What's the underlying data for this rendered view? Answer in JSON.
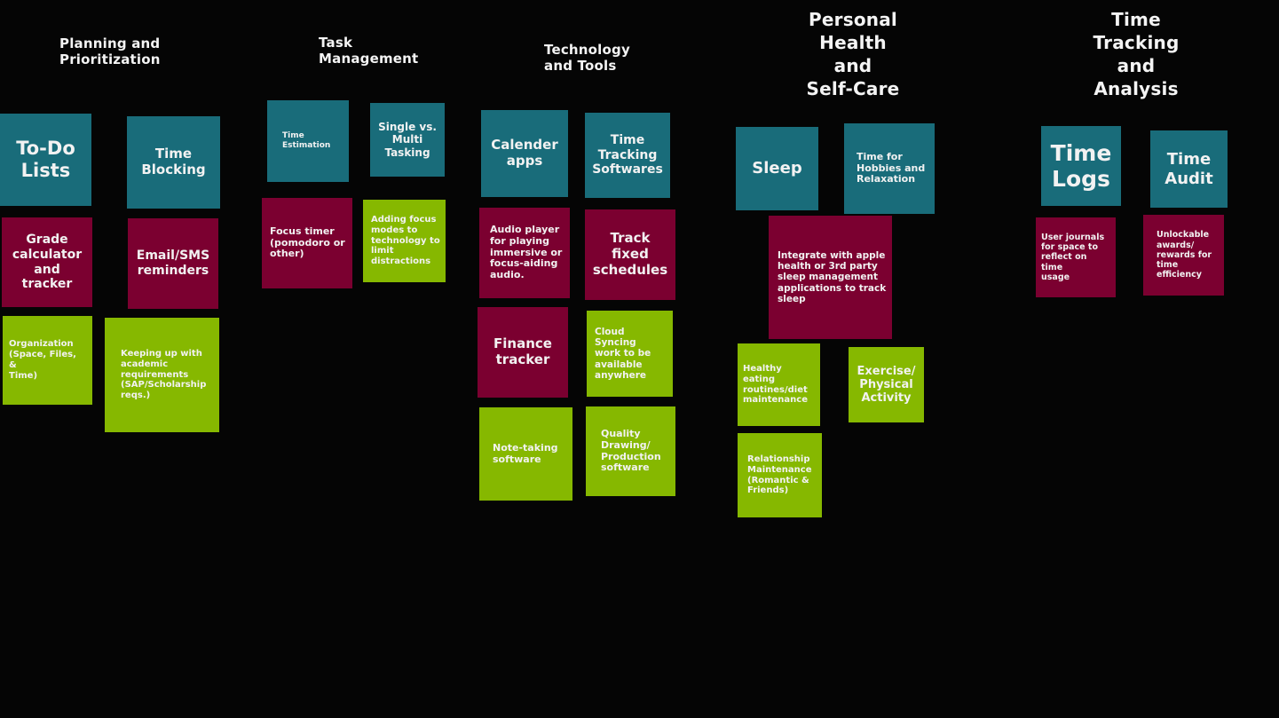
{
  "colors": {
    "background": "#050505",
    "teal": "#196c7a",
    "maroon": "#7b0030",
    "lime": "#86b800",
    "text": "#f2f2f2"
  },
  "headings": {
    "planning": "Planning and\nPrioritization",
    "task": "Task\nManagement",
    "tech": "Technology\nand Tools",
    "health": "Personal\nHealth\nand\nSelf-Care",
    "tracking": "Time\nTracking\nand\nAnalysis"
  },
  "notes": {
    "todo": "To-Do\nLists",
    "time_blocking": "Time\nBlocking",
    "grade_calc": "Grade\ncalculator\nand\ntracker",
    "email_sms": "Email/SMS\nreminders",
    "organization": "Organization\n(Space, Files, &\nTime)",
    "academic_reqs": "Keeping up with\nacademic\nrequirements\n(SAP/Scholarship\nreqs.)",
    "time_estimation": "Time\nEstimation",
    "single_multi": "Single vs.\nMulti\nTasking",
    "focus_timer": "Focus timer\n(pomodoro or\nother)",
    "focus_modes": "Adding focus\nmodes to\ntechnology to\nlimit\ndistractions",
    "calendar_apps": "Calender\napps",
    "tracking_softwares": "Time\nTracking\nSoftwares",
    "audio_player": "Audio player\nfor playing\nimmersive or\nfocus-aiding\naudio.",
    "fixed_schedules": "Track\nfixed\nschedules",
    "finance": "Finance\ntracker",
    "cloud_sync": "Cloud Syncing\nwork to be\navailable\nanywhere",
    "note_taking": "Note-taking\nsoftware",
    "drawing_software": "Quality\nDrawing/\nProduction\nsoftware",
    "sleep": "Sleep",
    "hobbies": "Time for\nHobbies and\nRelaxation",
    "apple_health": "Integrate with apple\nhealth or 3rd party\nsleep management\napplications to track\nsleep",
    "healthy_eating": "Healthy eating\nroutines/diet\nmaintenance",
    "exercise": "Exercise/\nPhysical\nActivity",
    "relationship": "Relationship\nMaintenance\n(Romantic &\nFriends)",
    "time_logs": "Time\nLogs",
    "time_audit": "Time\nAudit",
    "user_journals": "User journals\nfor space to\nreflect on time\nusage",
    "awards": "Unlockable\nawards/\nrewards for\ntime\nefficiency"
  }
}
